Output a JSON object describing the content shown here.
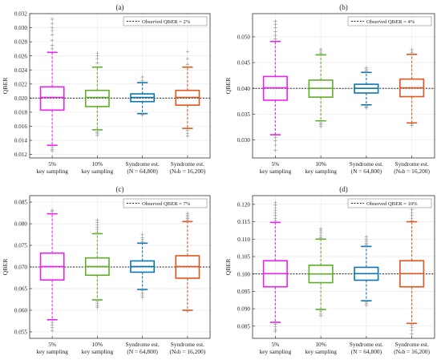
{
  "chart_data": [
    {
      "type": "box",
      "title": "(a)",
      "ylabel": "QBER",
      "ylim": [
        0.0115,
        0.032
      ],
      "yticks": [
        0.012,
        0.014,
        0.016,
        0.018,
        0.02,
        0.022,
        0.024,
        0.026,
        0.028,
        0.03,
        0.032
      ],
      "ytick_labels": [
        "0.012",
        "0.014",
        "0.016",
        "0.018",
        "0.020",
        "0.022",
        "0.024",
        "0.026",
        "0.028",
        "0.030",
        "0.032"
      ],
      "reference": {
        "label": "Observed QBER = 2%",
        "value": 0.02
      },
      "categories": [
        {
          "line1": "5%",
          "line2": "key sampling"
        },
        {
          "line1": "10%",
          "line2": "key sampling"
        },
        {
          "line1": "Syndrome est.",
          "line2": "(N = 64,800)"
        },
        {
          "line1": "Syndrome est.",
          "line2": "(Nₛb = 16,200)"
        }
      ],
      "boxes": [
        {
          "q1": 0.0183,
          "median": 0.0201,
          "q3": 0.0216,
          "whisker_low": 0.0133,
          "whisker_high": 0.0265,
          "outliers_low": [
            0.013,
            0.0127,
            0.0125
          ],
          "outliers_high": [
            0.027,
            0.0275,
            0.0282,
            0.029,
            0.0296,
            0.03,
            0.0306,
            0.0312
          ],
          "color": "#ee22ee"
        },
        {
          "q1": 0.0188,
          "median": 0.0201,
          "q3": 0.0211,
          "whisker_low": 0.0155,
          "whisker_high": 0.0244,
          "outliers_low": [
            0.0152,
            0.015,
            0.0147
          ],
          "outliers_high": [
            0.025,
            0.0256,
            0.026,
            0.0264
          ],
          "color": "#5fae2a"
        },
        {
          "q1": 0.0195,
          "median": 0.0201,
          "q3": 0.0206,
          "whisker_low": 0.0178,
          "whisker_high": 0.0222,
          "outliers_low": [
            0.0177,
            0.0176
          ],
          "outliers_high": [
            0.0225,
            0.023
          ],
          "color": "#0b77ae"
        },
        {
          "q1": 0.019,
          "median": 0.0201,
          "q3": 0.0211,
          "whisker_low": 0.0157,
          "whisker_high": 0.0244,
          "outliers_low": [
            0.0154,
            0.015,
            0.0146
          ],
          "outliers_high": [
            0.0248,
            0.0256,
            0.0266
          ],
          "color": "#e5541a"
        }
      ]
    },
    {
      "type": "box",
      "title": "(b)",
      "ylabel": "QBER",
      "ylim": [
        0.0265,
        0.0545
      ],
      "yticks": [
        0.03,
        0.035,
        0.04,
        0.045,
        0.05
      ],
      "ytick_labels": [
        "0.030",
        "0.035",
        "0.040",
        "0.045",
        "0.050"
      ],
      "reference": {
        "label": "Observed QBER = 4%",
        "value": 0.04
      },
      "categories": [
        {
          "line1": "5%",
          "line2": "key sampling"
        },
        {
          "line1": "10%",
          "line2": "key sampling"
        },
        {
          "line1": "Syndrome est.",
          "line2": "(N = 64,800)"
        },
        {
          "line1": "Syndrome est.",
          "line2": "(Nₛb = 16,200)"
        }
      ],
      "boxes": [
        {
          "q1": 0.0377,
          "median": 0.0401,
          "q3": 0.0423,
          "whisker_low": 0.031,
          "whisker_high": 0.0491,
          "outliers_low": [
            0.0305,
            0.0298,
            0.029,
            0.028
          ],
          "outliers_high": [
            0.0496,
            0.0503,
            0.051,
            0.0518,
            0.0524,
            0.053
          ],
          "color": "#ee22ee"
        },
        {
          "q1": 0.0383,
          "median": 0.04,
          "q3": 0.0416,
          "whisker_low": 0.0337,
          "whisker_high": 0.0465,
          "outliers_low": [
            0.0333,
            0.033,
            0.0326
          ],
          "outliers_high": [
            0.0468,
            0.0472,
            0.0476
          ],
          "color": "#5fae2a"
        },
        {
          "q1": 0.0391,
          "median": 0.04,
          "q3": 0.0408,
          "whisker_low": 0.0368,
          "whisker_high": 0.0431,
          "outliers_low": [
            0.0366,
            0.0364,
            0.0362
          ],
          "outliers_high": [
            0.0434,
            0.0437,
            0.044
          ],
          "color": "#0b77ae"
        },
        {
          "q1": 0.0384,
          "median": 0.0401,
          "q3": 0.0418,
          "whisker_low": 0.0333,
          "whisker_high": 0.0466,
          "outliers_low": [
            0.0331,
            0.0328
          ],
          "outliers_high": [
            0.047,
            0.0475
          ],
          "color": "#e5541a"
        }
      ]
    },
    {
      "type": "box",
      "title": "(c)",
      "ylabel": "QBER",
      "ylim": [
        0.0535,
        0.0865
      ],
      "yticks": [
        0.055,
        0.06,
        0.065,
        0.07,
        0.075,
        0.08,
        0.085
      ],
      "ytick_labels": [
        "0.055",
        "0.060",
        "0.065",
        "0.070",
        "0.075",
        "0.080",
        "0.085"
      ],
      "reference": {
        "label": "Observed QBER = 7%",
        "value": 0.07
      },
      "categories": [
        {
          "line1": "5%",
          "line2": "key sampling"
        },
        {
          "line1": "10%",
          "line2": "key sampling"
        },
        {
          "line1": "Syndrome est.",
          "line2": "(N = 64,800)"
        },
        {
          "line1": "Syndrome est.",
          "line2": "(Nₛb = 16,200)"
        }
      ],
      "boxes": [
        {
          "q1": 0.067,
          "median": 0.0701,
          "q3": 0.0732,
          "whisker_low": 0.0578,
          "whisker_high": 0.0823,
          "outliers_low": [
            0.0572,
            0.0566,
            0.056,
            0.0553
          ],
          "outliers_high": [
            0.0828,
            0.0831
          ],
          "color": "#ee22ee"
        },
        {
          "q1": 0.0681,
          "median": 0.0701,
          "q3": 0.0721,
          "whisker_low": 0.0624,
          "whisker_high": 0.0777,
          "outliers_low": [
            0.062,
            0.0615,
            0.061,
            0.0606
          ],
          "outliers_high": [
            0.0781,
            0.0787,
            0.0792,
            0.0797,
            0.0803,
            0.0808
          ],
          "color": "#5fae2a"
        },
        {
          "q1": 0.0688,
          "median": 0.0701,
          "q3": 0.0714,
          "whisker_low": 0.0648,
          "whisker_high": 0.0755,
          "outliers_low": [
            0.0645,
            0.064,
            0.0635,
            0.063
          ],
          "outliers_high": [
            0.0758,
            0.0763,
            0.0768,
            0.0775
          ],
          "color": "#0b77ae"
        },
        {
          "q1": 0.0674,
          "median": 0.0701,
          "q3": 0.0726,
          "whisker_low": 0.06,
          "whisker_high": 0.0805,
          "outliers_low": [
            0.0598
          ],
          "outliers_high": [
            0.0808,
            0.0812,
            0.0816,
            0.082,
            0.0824
          ],
          "color": "#e5541a"
        }
      ]
    },
    {
      "type": "box",
      "title": "(d)",
      "ylabel": "QBER",
      "ylim": [
        0.0815,
        0.1225
      ],
      "yticks": [
        0.085,
        0.09,
        0.095,
        0.1,
        0.105,
        0.11,
        0.115,
        0.12
      ],
      "ytick_labels": [
        "0.085",
        "0.090",
        "0.095",
        "0.100",
        "0.105",
        "0.110",
        "0.115",
        "0.120"
      ],
      "reference": {
        "label": "Observed QBER = 10%",
        "value": 0.1
      },
      "categories": [
        {
          "line1": "5%",
          "line2": "key sampling"
        },
        {
          "line1": "10%",
          "line2": "key sampling"
        },
        {
          "line1": "Syndrome est.",
          "line2": "(N = 64,800)"
        },
        {
          "line1": "Syndrome est.",
          "line2": "(Nₛb = 16,200)"
        }
      ],
      "boxes": [
        {
          "q1": 0.0963,
          "median": 0.1001,
          "q3": 0.1038,
          "whisker_low": 0.0861,
          "whisker_high": 0.1148,
          "outliers_low": [
            0.0855,
            0.0848,
            0.084,
            0.0835
          ],
          "outliers_high": [
            0.1153,
            0.116,
            0.1168,
            0.1175,
            0.1182,
            0.119,
            0.1198,
            0.1205
          ],
          "color": "#ee22ee"
        },
        {
          "q1": 0.0975,
          "median": 0.1,
          "q3": 0.1025,
          "whisker_low": 0.0898,
          "whisker_high": 0.11,
          "outliers_low": [
            0.0893,
            0.0886,
            0.088
          ],
          "outliers_high": [
            0.1104,
            0.111,
            0.1118,
            0.1124,
            0.113
          ],
          "color": "#5fae2a"
        },
        {
          "q1": 0.0982,
          "median": 0.1001,
          "q3": 0.1019,
          "whisker_low": 0.0923,
          "whisker_high": 0.1079,
          "outliers_low": [
            0.092,
            0.0915,
            0.091
          ],
          "outliers_high": [
            0.1083,
            0.1088,
            0.1094,
            0.11,
            0.1107
          ],
          "color": "#0b77ae"
        },
        {
          "q1": 0.0963,
          "median": 0.1001,
          "q3": 0.1038,
          "whisker_low": 0.0858,
          "whisker_high": 0.115,
          "outliers_low": [
            0.0854,
            0.0846,
            0.0838,
            0.0828
          ],
          "outliers_high": [
            0.1153,
            0.116,
            0.1168,
            0.1176,
            0.1185
          ],
          "color": "#e5541a"
        }
      ]
    }
  ]
}
